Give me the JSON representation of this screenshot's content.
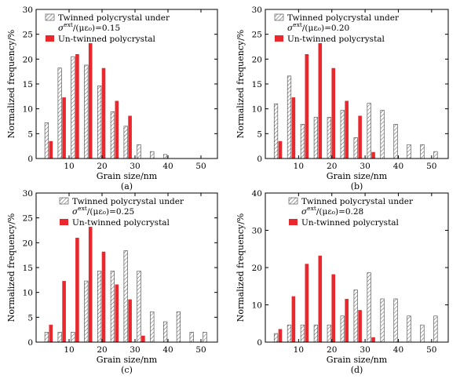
{
  "colors": {
    "twinned_fill": "#ffffff",
    "twinned_hatch": "#555555",
    "untwinned_fill": "#e8282d",
    "axis": "#000000"
  },
  "chart_data": [
    {
      "type": "bar",
      "panel_label": "(a)",
      "xlabel": "Grain size/nm",
      "ylabel": "Normalized frequency/%",
      "xlim": [
        0,
        55
      ],
      "ylim": [
        0,
        30
      ],
      "xticks": [
        "10",
        "20",
        "30",
        "40",
        "50"
      ],
      "yticks": [
        "0",
        "5",
        "10",
        "15",
        "20",
        "25",
        "30"
      ],
      "legend_position": "top-left",
      "series": [
        {
          "name": "Twinned polycrystal under",
          "name_line2_main": "σ",
          "name_line2_sup": "ext",
          "name_line2_rest": "/(με₀)=0.15",
          "x": [
            4,
            8,
            12,
            16,
            20,
            24,
            28,
            32,
            36,
            40
          ],
          "values": [
            7.2,
            18.2,
            20.5,
            18.8,
            14.6,
            9.4,
            6.5,
            2.8,
            1.4,
            0.8
          ]
        },
        {
          "name": "Un-twinned polycrystal",
          "x": [
            4,
            8,
            12,
            16,
            20,
            24,
            28
          ],
          "values": [
            3.5,
            12.3,
            21.0,
            23.2,
            18.2,
            11.6,
            8.6
          ]
        }
      ]
    },
    {
      "type": "bar",
      "panel_label": "(b)",
      "xlabel": "Grain size/nm",
      "ylabel": "Normalized frequency/%",
      "xlim": [
        0,
        55
      ],
      "ylim": [
        0,
        30
      ],
      "xticks": [
        "10",
        "20",
        "30",
        "40",
        "50"
      ],
      "yticks": [
        "0",
        "5",
        "10",
        "15",
        "20",
        "25",
        "30"
      ],
      "legend_position": "top-left",
      "series": [
        {
          "name": "Twinned polycrystal under",
          "name_line2_main": "σ",
          "name_line2_sup": "ext",
          "name_line2_rest": "/(με₀)=0.20",
          "x": [
            4,
            8,
            12,
            16,
            20,
            24,
            28,
            32,
            36,
            40,
            44,
            48,
            52
          ],
          "values": [
            11.0,
            16.6,
            6.9,
            8.3,
            8.3,
            9.7,
            4.2,
            11.1,
            9.7,
            6.9,
            2.8,
            2.8,
            1.4
          ]
        },
        {
          "name": "Un-twinned polycrystal",
          "x": [
            4,
            8,
            12,
            16,
            20,
            24,
            28,
            32
          ],
          "values": [
            3.5,
            12.3,
            21.0,
            23.2,
            18.2,
            11.6,
            8.6,
            1.3
          ]
        }
      ]
    },
    {
      "type": "bar",
      "panel_label": "(c)",
      "xlabel": "Grain size/nm",
      "ylabel": "Normalized frequency/%",
      "xlim": [
        0,
        55
      ],
      "ylim": [
        0,
        30
      ],
      "xticks": [
        "10",
        "20",
        "30",
        "40",
        "50"
      ],
      "yticks": [
        "0",
        "5",
        "10",
        "15",
        "20",
        "25",
        "30"
      ],
      "legend_position": "top-right",
      "series": [
        {
          "name": "Twinned polycrystal under",
          "name_line2_main": "σ",
          "name_line2_sup": "ext",
          "name_line2_rest": "/(με₀)=0.25",
          "x": [
            4,
            8,
            12,
            16,
            20,
            24,
            28,
            32,
            36,
            40,
            44,
            48,
            52
          ],
          "values": [
            2.0,
            2.0,
            2.0,
            12.3,
            14.3,
            14.3,
            18.4,
            14.3,
            6.1,
            4.1,
            6.1,
            2.0,
            2.0
          ]
        },
        {
          "name": "Un-twinned polycrystal",
          "x": [
            4,
            8,
            12,
            16,
            20,
            24,
            28,
            32
          ],
          "values": [
            3.5,
            12.3,
            21.0,
            23.2,
            18.2,
            11.6,
            8.6,
            1.3
          ]
        }
      ]
    },
    {
      "type": "bar",
      "panel_label": "(d)",
      "xlabel": "Grain size/nm",
      "ylabel": "Normalized frequency/%",
      "xlim": [
        0,
        55
      ],
      "ylim": [
        0,
        40
      ],
      "xticks": [
        "10",
        "20",
        "30",
        "40",
        "50"
      ],
      "yticks": [
        "0",
        "10",
        "20",
        "30",
        "40"
      ],
      "legend_position": "top-right",
      "series": [
        {
          "name": "Twinned polycrystal under",
          "name_line2_main": "σ",
          "name_line2_sup": "ext",
          "name_line2_rest": "/(με₀)=0.28",
          "x": [
            4,
            8,
            12,
            16,
            20,
            24,
            28,
            32,
            36,
            40,
            44,
            48,
            52
          ],
          "values": [
            2.3,
            4.6,
            4.6,
            4.6,
            4.6,
            7.0,
            14.0,
            18.6,
            11.6,
            11.6,
            7.0,
            4.6,
            7.0
          ]
        },
        {
          "name": "Un-twinned polycrystal",
          "x": [
            4,
            8,
            12,
            16,
            20,
            24,
            28,
            32
          ],
          "values": [
            3.5,
            12.3,
            21.0,
            23.2,
            18.2,
            11.6,
            8.6,
            1.3
          ]
        }
      ]
    }
  ]
}
